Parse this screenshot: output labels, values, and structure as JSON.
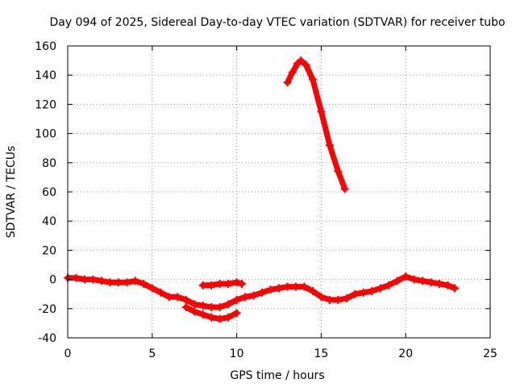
{
  "chart_data": {
    "type": "scatter",
    "title": "Day 094 of 2025, Sidereal Day-to-day VTEC variation (SDTVAR) for receiver tubo",
    "xlabel": "GPS time / hours",
    "ylabel": "SDTVAR / TECUs",
    "xlim": [
      0,
      25
    ],
    "ylim": [
      -40,
      160
    ],
    "xticks": [
      0,
      5,
      10,
      15,
      20,
      25
    ],
    "yticks": [
      -40,
      -20,
      0,
      20,
      40,
      60,
      80,
      100,
      120,
      140,
      160
    ],
    "grid": true,
    "marker_color": "#ff0000",
    "series": [
      {
        "name": "main-trace",
        "x": [
          0.0,
          0.5,
          1.0,
          1.5,
          2.0,
          2.5,
          3.0,
          3.5,
          4.0,
          4.5,
          5.0,
          5.5,
          6.0,
          6.5,
          7.0,
          7.5,
          8.0,
          8.5,
          9.0,
          9.5,
          10.0,
          10.5,
          11.0,
          11.5,
          12.0,
          12.5,
          13.0,
          13.5,
          14.0,
          14.5,
          15.0,
          15.5,
          16.0,
          16.5,
          17.0,
          17.5,
          18.0,
          18.5,
          19.0,
          19.5,
          20.0,
          20.5,
          21.0,
          21.5,
          22.0,
          22.5,
          22.9
        ],
        "y": [
          1,
          1,
          0,
          0,
          -1,
          -2,
          -2,
          -2,
          -1,
          -3,
          -6,
          -9,
          -12,
          -12,
          -14,
          -17,
          -18,
          -19,
          -19,
          -17,
          -14,
          -12,
          -11,
          -9,
          -7,
          -6,
          -5,
          -5,
          -5,
          -8,
          -12,
          -14,
          -14,
          -13,
          -10,
          -9,
          -8,
          -6,
          -4,
          -1,
          2,
          0,
          -1,
          -2,
          -3,
          -4,
          -6
        ]
      },
      {
        "name": "lower-arc",
        "x": [
          7.0,
          7.5,
          8.0,
          8.5,
          9.0,
          9.5,
          10.0
        ],
        "y": [
          -19,
          -22,
          -24,
          -26,
          -27,
          -26,
          -23
        ]
      },
      {
        "name": "upper-segment",
        "x": [
          8.0,
          8.5,
          9.0,
          9.5,
          10.0,
          10.3
        ],
        "y": [
          -4,
          -4,
          -3,
          -3,
          -2,
          -3
        ]
      },
      {
        "name": "peak-arc",
        "x": [
          13.0,
          13.3,
          13.6,
          13.8,
          14.1,
          14.5,
          15.0,
          15.5,
          16.0,
          16.4
        ],
        "y": [
          135,
          142,
          148,
          150,
          147,
          137,
          115,
          92,
          74,
          62
        ]
      }
    ]
  }
}
